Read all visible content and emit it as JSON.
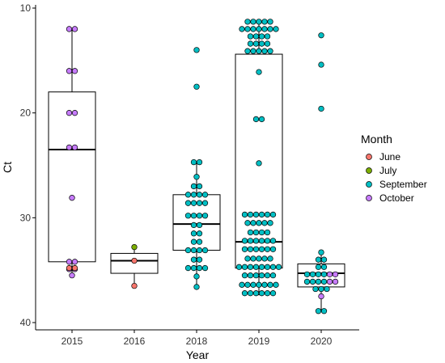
{
  "chart_data": {
    "type": "box-dot",
    "xlabel": "Year",
    "ylabel": "Ct",
    "ylim": [
      10,
      40
    ],
    "y_reversed": true,
    "y_ticks": [
      10,
      20,
      30,
      40
    ],
    "categories": [
      "2015",
      "2016",
      "2018",
      "2019",
      "2020"
    ],
    "grid": false,
    "legend": {
      "title": "Month",
      "position": "right",
      "entries": [
        {
          "name": "June",
          "color": "#F8766D"
        },
        {
          "name": "July",
          "color": "#7CAE00"
        },
        {
          "name": "September",
          "color": "#00BFC4"
        },
        {
          "name": "October",
          "color": "#C77CFF"
        }
      ]
    },
    "boxes": [
      {
        "category": "2015",
        "whisker_low": 12.0,
        "q1": 18.0,
        "median": 23.5,
        "q3": 34.2,
        "whisker_high": 35.5
      },
      {
        "category": "2016",
        "whisker_low": 32.8,
        "q1": 33.4,
        "median": 34.1,
        "q3": 35.3,
        "whisker_high": 36.5
      },
      {
        "category": "2018",
        "whisker_low": 24.7,
        "q1": 27.8,
        "median": 30.6,
        "q3": 33.1,
        "whisker_high": 36.6
      },
      {
        "category": "2019",
        "whisker_low": 11.3,
        "q1": 14.4,
        "median": 32.3,
        "q3": 34.8,
        "whisker_high": 37.4
      },
      {
        "category": "2020",
        "whisker_low": 33.3,
        "q1": 34.4,
        "median": 35.3,
        "q3": 36.6,
        "whisker_high": 38.9
      }
    ],
    "points": [
      {
        "category": "2015",
        "month": "October",
        "values": [
          12.0,
          12.0,
          16.0,
          16.0,
          20.0,
          20.0,
          23.3,
          23.3,
          28.1,
          34.2,
          34.2,
          34.9,
          34.9,
          35.5
        ]
      },
      {
        "category": "2015",
        "month": "June",
        "values": [
          34.8,
          34.8
        ]
      },
      {
        "category": "2016",
        "month": "July",
        "values": [
          32.8
        ]
      },
      {
        "category": "2016",
        "month": "June",
        "values": [
          34.1,
          36.5
        ]
      },
      {
        "category": "2018",
        "month": "September",
        "values": [
          14.0,
          17.5,
          24.7,
          24.7,
          26.1,
          27.0,
          27.0,
          27.8,
          27.8,
          27.8,
          27.8,
          28.6,
          28.6,
          28.6,
          28.6,
          29.8,
          29.8,
          29.8,
          29.8,
          30.7,
          30.7,
          31.5,
          31.5,
          32.3,
          32.3,
          33.1,
          33.1,
          33.1,
          33.1,
          34.0,
          34.0,
          34.8,
          34.8,
          34.8,
          34.8,
          35.6,
          36.6
        ]
      },
      {
        "category": "2019",
        "month": "September",
        "values": [
          11.3,
          11.3,
          11.3,
          11.3,
          11.3,
          12.0,
          12.0,
          12.0,
          12.0,
          12.0,
          12.0,
          12.0,
          12.7,
          12.7,
          12.7,
          12.7,
          13.4,
          13.4,
          13.4,
          13.4,
          14.1,
          14.1,
          14.1,
          14.1,
          14.1,
          16.1,
          20.6,
          20.6,
          24.8,
          29.7,
          29.7,
          29.7,
          29.7,
          29.7,
          29.7,
          30.5,
          30.5,
          30.5,
          30.5,
          30.5,
          31.4,
          31.4,
          31.4,
          31.4,
          32.2,
          32.2,
          32.2,
          32.2,
          32.2,
          32.2,
          33.0,
          33.0,
          33.0,
          33.0,
          33.0,
          33.0,
          33.9,
          33.9,
          33.9,
          33.9,
          33.9,
          34.7,
          34.7,
          34.7,
          34.7,
          34.7,
          34.7,
          34.7,
          34.7,
          35.5,
          35.5,
          35.5,
          35.5,
          35.5,
          35.5,
          36.4,
          36.4,
          36.4,
          36.4,
          36.4,
          36.4,
          36.4,
          37.2,
          37.2,
          37.2,
          37.2,
          37.2,
          37.2
        ]
      },
      {
        "category": "2020",
        "month": "September",
        "values": [
          12.6,
          15.4,
          19.6,
          33.3,
          34.0,
          34.0,
          34.7,
          34.7,
          35.4,
          35.4,
          35.4,
          35.4,
          36.1,
          36.1,
          36.1,
          36.1,
          36.8,
          36.8,
          36.8,
          38.9,
          38.9
        ]
      },
      {
        "category": "2020",
        "month": "October",
        "values": [
          35.4,
          35.4,
          36.1,
          36.1,
          37.5
        ]
      }
    ]
  }
}
